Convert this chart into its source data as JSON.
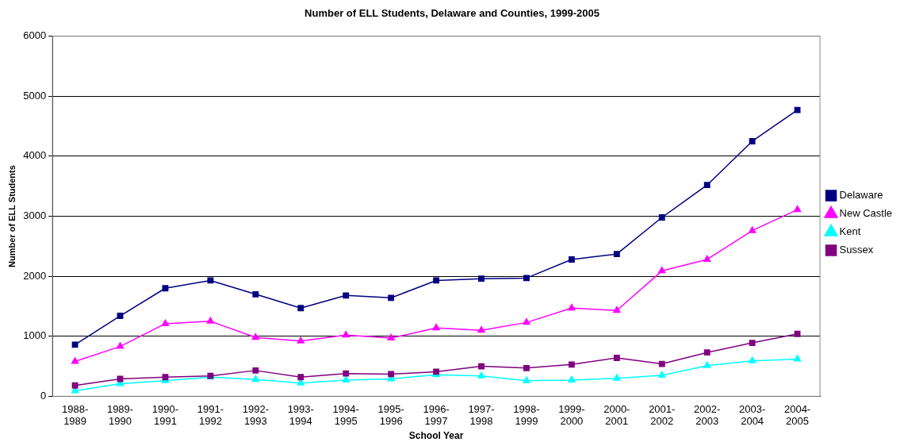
{
  "chart_data": {
    "type": "line",
    "title": "Number of ELL Students, Delaware and Counties, 1999-2005",
    "xlabel": "School Year",
    "ylabel": "Number of ELL Students",
    "categories": [
      "1988-1989",
      "1989-1990",
      "1990-1991",
      "1991-1992",
      "1992-1993",
      "1993-1994",
      "1994-1995",
      "1995-1996",
      "1996-1997",
      "1997-1998",
      "1998-1999",
      "1999-2000",
      "2000-2001",
      "2001-2002",
      "2002-2003",
      "2003-2004",
      "2004-2005"
    ],
    "series": [
      {
        "name": "Delaware",
        "color": "#000080",
        "marker": "square",
        "values": [
          860,
          1340,
          1800,
          1930,
          1700,
          1470,
          1680,
          1640,
          1930,
          1960,
          1970,
          2280,
          2370,
          2980,
          3520,
          4250,
          4770
        ]
      },
      {
        "name": "New Castle",
        "color": "#ff00ff",
        "marker": "triangle",
        "values": [
          580,
          830,
          1210,
          1250,
          980,
          920,
          1020,
          970,
          1140,
          1100,
          1230,
          1470,
          1430,
          2090,
          2280,
          2760,
          3110
        ]
      },
      {
        "name": "Kent",
        "color": "#00ffff",
        "marker": "triangle",
        "values": [
          90,
          210,
          260,
          320,
          280,
          220,
          270,
          290,
          360,
          340,
          260,
          270,
          300,
          350,
          510,
          590,
          620
        ]
      },
      {
        "name": "Sussex",
        "color": "#800080",
        "marker": "square",
        "values": [
          180,
          290,
          320,
          340,
          430,
          320,
          380,
          370,
          410,
          500,
          470,
          530,
          640,
          540,
          730,
          890,
          1040
        ]
      }
    ],
    "ylim": [
      0,
      6000
    ],
    "yticks": [
      0,
      1000,
      2000,
      3000,
      4000,
      5000,
      6000
    ],
    "grid": "y",
    "legend": "right",
    "line_style": "solid"
  }
}
